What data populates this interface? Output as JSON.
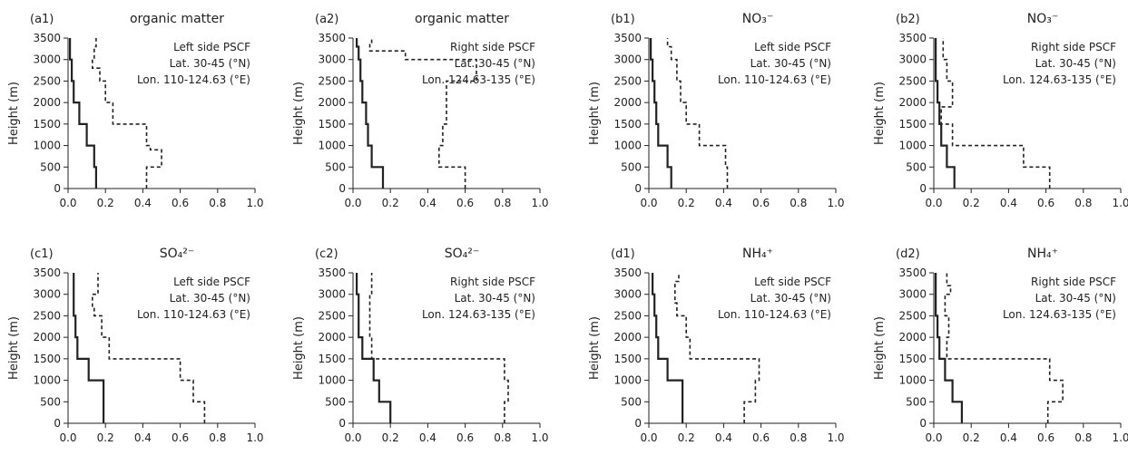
{
  "chart_data": [
    {
      "type": "line",
      "panel_label": "(a1)",
      "title": "organic matter",
      "ylabel": "Height (m)",
      "annotation": [
        "Left side PSCF",
        "Lat. 30-45 (°N)",
        "Lon. 110-124.63 (°E)"
      ],
      "xlim": [
        0,
        1.0
      ],
      "ylim": [
        0,
        3500
      ],
      "xticks": [
        "0.0",
        "0.2",
        "0.4",
        "0.6",
        "0.8",
        "1.0"
      ],
      "yticks": [
        "0",
        "500",
        "1000",
        "1500",
        "2000",
        "2500",
        "3000",
        "3500"
      ],
      "series": [
        {
          "style": "solid",
          "x": [
            0.15,
            0.15,
            0.14,
            0.14,
            0.1,
            0.1,
            0.06,
            0.06,
            0.03,
            0.03,
            0.02,
            0.02,
            0.01,
            0.01
          ],
          "y": [
            0,
            500,
            500,
            1000,
            1000,
            1500,
            1500,
            2000,
            2000,
            2500,
            2500,
            3000,
            3000,
            3500
          ]
        },
        {
          "style": "dashed",
          "x": [
            0.42,
            0.42,
            0.5,
            0.5,
            0.44,
            0.44,
            0.42,
            0.42,
            0.24,
            0.24,
            0.2,
            0.2,
            0.17,
            0.17,
            0.13,
            0.13,
            0.14,
            0.14,
            0.15,
            0.15
          ],
          "y": [
            0,
            500,
            500,
            900,
            900,
            1000,
            1000,
            1500,
            1500,
            2000,
            2000,
            2500,
            2500,
            2800,
            2800,
            3000,
            3000,
            3300,
            3300,
            3500
          ]
        }
      ]
    },
    {
      "type": "line",
      "panel_label": "(a2)",
      "title": "organic matter",
      "ylabel": "Height (m)",
      "annotation": [
        "Right side PSCF",
        "Lat. 30-45 (°N)",
        "Lon. 124.63-135 (°E)"
      ],
      "xlim": [
        0,
        1.0
      ],
      "ylim": [
        0,
        3500
      ],
      "xticks": [
        "0.0",
        "0.2",
        "0.4",
        "0.6",
        "0.8",
        "1.0"
      ],
      "yticks": [
        "0",
        "500",
        "1000",
        "1500",
        "2000",
        "2500",
        "3000",
        "3500"
      ],
      "series": [
        {
          "style": "solid",
          "x": [
            0.16,
            0.16,
            0.1,
            0.1,
            0.08,
            0.08,
            0.07,
            0.07,
            0.05,
            0.05,
            0.04,
            0.04,
            0.03,
            0.03,
            0.02,
            0.02
          ],
          "y": [
            0,
            500,
            500,
            1000,
            1000,
            1500,
            1500,
            2000,
            2000,
            2500,
            2500,
            3000,
            3000,
            3300,
            3300,
            3500
          ]
        },
        {
          "style": "dashed",
          "x": [
            0.6,
            0.6,
            0.46,
            0.46,
            0.48,
            0.48,
            0.5,
            0.5,
            0.66,
            0.66,
            0.28,
            0.28,
            0.09,
            0.09,
            0.1,
            0.1
          ],
          "y": [
            0,
            500,
            500,
            1000,
            1000,
            1500,
            1500,
            2500,
            2500,
            3000,
            3000,
            3200,
            3200,
            3400,
            3400,
            3500
          ]
        }
      ]
    },
    {
      "type": "line",
      "panel_label": "(b1)",
      "title": "NO₃⁻",
      "ylabel": "Height (m)",
      "annotation": [
        "Left side PSCF",
        "Lat. 30-45 (°N)",
        "Lon. 110-124.63 (°E)"
      ],
      "xlim": [
        0,
        1.0
      ],
      "ylim": [
        0,
        3500
      ],
      "xticks": [
        "0.0",
        "0.2",
        "0.4",
        "0.6",
        "0.8",
        "1.0"
      ],
      "yticks": [
        "0",
        "500",
        "1000",
        "1500",
        "2000",
        "2500",
        "3000",
        "3500"
      ],
      "series": [
        {
          "style": "solid",
          "x": [
            0.12,
            0.12,
            0.1,
            0.1,
            0.05,
            0.05,
            0.04,
            0.04,
            0.03,
            0.03,
            0.02,
            0.02,
            0.01,
            0.01
          ],
          "y": [
            0,
            500,
            500,
            1000,
            1000,
            1500,
            1500,
            2000,
            2000,
            2500,
            2500,
            3000,
            3000,
            3500
          ]
        },
        {
          "style": "dashed",
          "x": [
            0.42,
            0.42,
            0.41,
            0.41,
            0.27,
            0.27,
            0.2,
            0.2,
            0.17,
            0.17,
            0.15,
            0.15,
            0.12,
            0.12,
            0.1,
            0.1
          ],
          "y": [
            0,
            500,
            500,
            1000,
            1000,
            1500,
            1500,
            2000,
            2000,
            2500,
            2500,
            3000,
            3000,
            3300,
            3300,
            3500
          ]
        }
      ]
    },
    {
      "type": "line",
      "panel_label": "(b2)",
      "title": "NO₃⁻",
      "ylabel": "Height (m)",
      "annotation": [
        "Right side PSCF",
        "Lat. 30-45 (°N)",
        "Lon. 124.63-135 (°E)"
      ],
      "xlim": [
        0,
        1.0
      ],
      "ylim": [
        0,
        3500
      ],
      "xticks": [
        "0.0",
        "0.2",
        "0.4",
        "0.6",
        "0.8",
        "1.0"
      ],
      "yticks": [
        "0",
        "500",
        "1000",
        "1500",
        "2000",
        "2500",
        "3000",
        "3500"
      ],
      "series": [
        {
          "style": "solid",
          "x": [
            0.11,
            0.11,
            0.07,
            0.07,
            0.04,
            0.04,
            0.03,
            0.03,
            0.02,
            0.02,
            0.01,
            0.01
          ],
          "y": [
            0,
            500,
            500,
            1000,
            1000,
            1500,
            1500,
            2000,
            2000,
            2500,
            2500,
            3500
          ]
        },
        {
          "style": "dashed",
          "x": [
            0.62,
            0.62,
            0.48,
            0.48,
            0.1,
            0.1,
            0.04,
            0.04,
            0.1,
            0.1,
            0.07,
            0.07,
            0.05,
            0.05
          ],
          "y": [
            0,
            500,
            500,
            1000,
            1000,
            1500,
            1500,
            1900,
            1900,
            2500,
            2500,
            3000,
            3000,
            3500
          ]
        }
      ]
    },
    {
      "type": "line",
      "panel_label": "(c1)",
      "title": "SO₄²⁻",
      "ylabel": "Height (m)",
      "annotation": [
        "Left side PSCF",
        "Lat. 30-45 (°N)",
        "Lon. 110-124.63 (°E)"
      ],
      "xlim": [
        0,
        1.0
      ],
      "ylim": [
        0,
        3500
      ],
      "xticks": [
        "0.0",
        "0.2",
        "0.4",
        "0.6",
        "0.8",
        "1.0"
      ],
      "yticks": [
        "0",
        "500",
        "1000",
        "1500",
        "2000",
        "2500",
        "3000",
        "3500"
      ],
      "series": [
        {
          "style": "solid",
          "x": [
            0.19,
            0.19,
            0.11,
            0.11,
            0.05,
            0.05,
            0.04,
            0.04,
            0.03,
            0.03
          ],
          "y": [
            0,
            1000,
            1000,
            1500,
            1500,
            2000,
            2000,
            2500,
            2500,
            3500
          ]
        },
        {
          "style": "dashed",
          "x": [
            0.73,
            0.73,
            0.67,
            0.67,
            0.6,
            0.6,
            0.22,
            0.22,
            0.18,
            0.18,
            0.14,
            0.14,
            0.13,
            0.13,
            0.16,
            0.16
          ],
          "y": [
            0,
            500,
            500,
            1000,
            1000,
            1500,
            1500,
            2000,
            2000,
            2500,
            2500,
            2700,
            2700,
            3000,
            3000,
            3500
          ]
        }
      ]
    },
    {
      "type": "line",
      "panel_label": "(c2)",
      "title": "SO₄²⁻",
      "ylabel": "Height (m)",
      "annotation": [
        "Right side PSCF",
        "Lat. 30-45 (°N)",
        "Lon. 124.63-135 (°E)"
      ],
      "xlim": [
        0,
        1.0
      ],
      "ylim": [
        0,
        3500
      ],
      "xticks": [
        "0.0",
        "0.2",
        "0.4",
        "0.6",
        "0.8",
        "1.0"
      ],
      "yticks": [
        "0",
        "500",
        "1000",
        "1500",
        "2000",
        "2500",
        "3000",
        "3500"
      ],
      "series": [
        {
          "style": "solid",
          "x": [
            0.2,
            0.2,
            0.14,
            0.14,
            0.11,
            0.11,
            0.05,
            0.05,
            0.03,
            0.03,
            0.02,
            0.02
          ],
          "y": [
            0,
            500,
            500,
            1000,
            1000,
            1500,
            1500,
            2000,
            2000,
            3000,
            3000,
            3500
          ]
        },
        {
          "style": "dashed",
          "x": [
            0.81,
            0.81,
            0.83,
            0.83,
            0.81,
            0.81,
            0.1,
            0.1,
            0.09,
            0.09,
            0.1,
            0.1
          ],
          "y": [
            0,
            500,
            500,
            1000,
            1000,
            1500,
            1500,
            2000,
            2000,
            3000,
            3000,
            3500
          ]
        }
      ]
    },
    {
      "type": "line",
      "panel_label": "(d1)",
      "title": "NH₄⁺",
      "ylabel": "Height (m)",
      "annotation": [
        "Left side PSCF",
        "Lat. 30-45 (°N)",
        "Lon. 110-124.63 (°E)"
      ],
      "xlim": [
        0,
        1.0
      ],
      "ylim": [
        0,
        3500
      ],
      "xticks": [
        "0.0",
        "0.2",
        "0.4",
        "0.6",
        "0.8",
        "1.0"
      ],
      "yticks": [
        "0",
        "500",
        "1000",
        "1500",
        "2000",
        "2500",
        "3000",
        "3500"
      ],
      "series": [
        {
          "style": "solid",
          "x": [
            0.18,
            0.18,
            0.1,
            0.1,
            0.05,
            0.05,
            0.04,
            0.04,
            0.03,
            0.03,
            0.02,
            0.02
          ],
          "y": [
            0,
            1000,
            1000,
            1500,
            1500,
            2000,
            2000,
            2500,
            2500,
            3000,
            3000,
            3500
          ]
        },
        {
          "style": "dashed",
          "x": [
            0.51,
            0.51,
            0.57,
            0.57,
            0.59,
            0.59,
            0.22,
            0.22,
            0.2,
            0.2,
            0.15,
            0.15,
            0.14,
            0.14,
            0.16,
            0.16
          ],
          "y": [
            0,
            500,
            500,
            1000,
            1000,
            1500,
            1500,
            2000,
            2000,
            2500,
            2500,
            2800,
            2800,
            3300,
            3300,
            3500
          ]
        }
      ]
    },
    {
      "type": "line",
      "panel_label": "(d2)",
      "title": "NH₄⁺",
      "ylabel": "Height (m)",
      "annotation": [
        "Right side PSCF",
        "Lat. 30-45 (°N)",
        "Lon. 124.63-135 (°E)"
      ],
      "xlim": [
        0,
        1.0
      ],
      "ylim": [
        0,
        3500
      ],
      "xticks": [
        "0.0",
        "0.2",
        "0.4",
        "0.6",
        "0.8",
        "1.0"
      ],
      "yticks": [
        "0",
        "500",
        "1000",
        "1500",
        "2000",
        "2500",
        "3000",
        "3500"
      ],
      "series": [
        {
          "style": "solid",
          "x": [
            0.15,
            0.15,
            0.1,
            0.1,
            0.06,
            0.06,
            0.03,
            0.03,
            0.02,
            0.02,
            0.01,
            0.01
          ],
          "y": [
            0,
            500,
            500,
            1000,
            1000,
            1500,
            1500,
            2000,
            2000,
            2500,
            2500,
            3500
          ]
        },
        {
          "style": "dashed",
          "x": [
            0.61,
            0.61,
            0.69,
            0.69,
            0.62,
            0.62,
            0.07,
            0.07,
            0.08,
            0.08,
            0.06,
            0.06,
            0.09,
            0.09,
            0.07,
            0.07
          ],
          "y": [
            0,
            500,
            500,
            1000,
            1000,
            1500,
            1500,
            2000,
            2000,
            2500,
            2500,
            3000,
            3000,
            3200,
            3200,
            3500
          ]
        }
      ]
    }
  ]
}
